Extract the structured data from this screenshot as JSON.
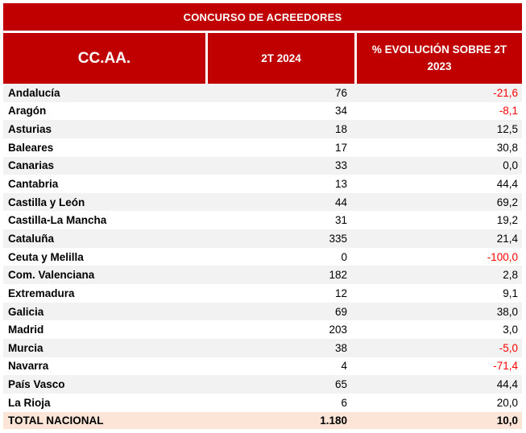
{
  "title": "CONCURSO DE ACREEDORES",
  "columns": {
    "region": "CC.AA.",
    "period": "2T 2024",
    "evolution": "% EVOLUCIÓN SOBRE 2T 2023"
  },
  "rows": [
    {
      "region": "Andalucía",
      "value": "76",
      "evolution": "-21,6"
    },
    {
      "region": "Aragón",
      "value": "34",
      "evolution": "-8,1"
    },
    {
      "region": "Asturias",
      "value": "18",
      "evolution": "12,5"
    },
    {
      "region": "Baleares",
      "value": "17",
      "evolution": "30,8"
    },
    {
      "region": "Canarias",
      "value": "33",
      "evolution": "0,0"
    },
    {
      "region": "Cantabria",
      "value": "13",
      "evolution": "44,4"
    },
    {
      "region": "Castilla y León",
      "value": "44",
      "evolution": "69,2"
    },
    {
      "region": "Castilla-La Mancha",
      "value": "31",
      "evolution": "19,2"
    },
    {
      "region": "Cataluña",
      "value": "335",
      "evolution": "21,4"
    },
    {
      "region": "Ceuta y Melilla",
      "value": "0",
      "evolution": "-100,0"
    },
    {
      "region": "Com. Valenciana",
      "value": "182",
      "evolution": "2,8"
    },
    {
      "region": "Extremadura",
      "value": "12",
      "evolution": "9,1"
    },
    {
      "region": "Galicia",
      "value": "69",
      "evolution": "38,0"
    },
    {
      "region": "Madrid",
      "value": "203",
      "evolution": "3,0"
    },
    {
      "region": "Murcia",
      "value": "38",
      "evolution": "-5,0"
    },
    {
      "region": "Navarra",
      "value": "4",
      "evolution": "-71,4"
    },
    {
      "region": "País Vasco",
      "value": "65",
      "evolution": "44,4"
    },
    {
      "region": "La Rioja",
      "value": "6",
      "evolution": "20,0"
    }
  ],
  "total": {
    "region": "TOTAL NACIONAL",
    "value": "1.180",
    "evolution": "10,0"
  },
  "colors": {
    "header_red": "#C00000",
    "negative_text": "#FF0000",
    "stripe_gray": "#F2F2F2",
    "total_bg": "#FCE4D6"
  },
  "chart_data": {
    "type": "table",
    "title": "CONCURSO DE ACREEDORES",
    "columns": [
      "CC.AA.",
      "2T 2024",
      "% EVOLUCIÓN SOBRE 2T 2023"
    ],
    "categories": [
      "Andalucía",
      "Aragón",
      "Asturias",
      "Baleares",
      "Canarias",
      "Cantabria",
      "Castilla y León",
      "Castilla-La Mancha",
      "Cataluña",
      "Ceuta y Melilla",
      "Com. Valenciana",
      "Extremadura",
      "Galicia",
      "Madrid",
      "Murcia",
      "Navarra",
      "País Vasco",
      "La Rioja"
    ],
    "series": [
      {
        "name": "2T 2024",
        "values": [
          76,
          34,
          18,
          17,
          33,
          13,
          44,
          31,
          335,
          0,
          182,
          12,
          69,
          203,
          38,
          4,
          65,
          6
        ]
      },
      {
        "name": "% EVOLUCIÓN SOBRE 2T 2023",
        "values": [
          -21.6,
          -8.1,
          12.5,
          30.8,
          0.0,
          44.4,
          69.2,
          19.2,
          21.4,
          -100.0,
          2.8,
          9.1,
          38.0,
          3.0,
          -5.0,
          -71.4,
          44.4,
          20.0
        ]
      }
    ],
    "total": {
      "label": "TOTAL NACIONAL",
      "values": [
        1180,
        10.0
      ]
    },
    "notes": "negative evolution values rendered in red"
  }
}
